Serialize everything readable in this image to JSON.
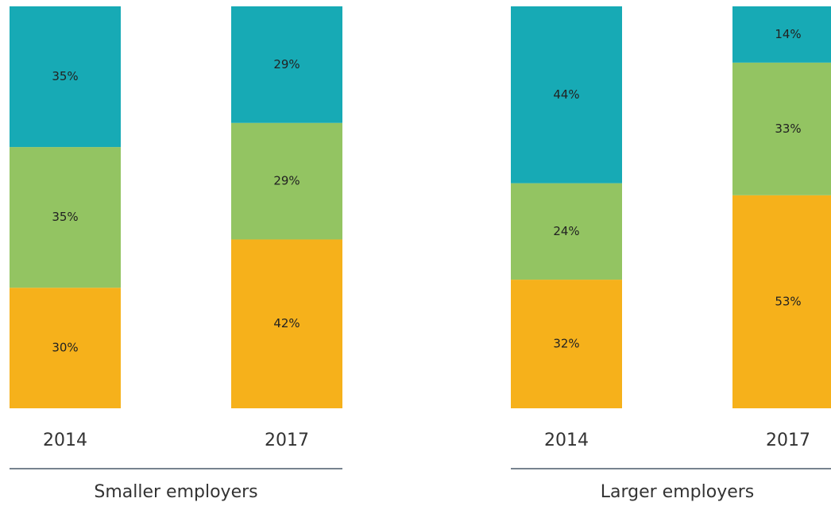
{
  "chart_data": [
    {
      "type": "bar",
      "stacked": true,
      "xlabel": "Smaller employers",
      "categories": [
        "2014",
        "2017"
      ],
      "ylim": [
        0,
        100
      ],
      "series": [
        {
          "color": "#f6b11b",
          "values": [
            30,
            42
          ],
          "value_labels": [
            "30%",
            "42%"
          ]
        },
        {
          "color": "#93c462",
          "values": [
            35,
            29
          ],
          "value_labels": [
            "35%",
            "29%"
          ]
        },
        {
          "color": "#17aab5",
          "values": [
            35,
            29
          ],
          "value_labels": [
            "35%",
            "29%"
          ]
        }
      ]
    },
    {
      "type": "bar",
      "stacked": true,
      "xlabel": "Larger employers",
      "categories": [
        "2014",
        "2017"
      ],
      "ylim": [
        0,
        100
      ],
      "series": [
        {
          "color": "#f6b11b",
          "values": [
            32,
            53
          ],
          "value_labels": [
            "32%",
            "53%"
          ]
        },
        {
          "color": "#93c462",
          "values": [
            24,
            33
          ],
          "value_labels": [
            "24%",
            "33%"
          ]
        },
        {
          "color": "#17aab5",
          "values": [
            44,
            14
          ],
          "value_labels": [
            "44%",
            "14%"
          ]
        }
      ]
    }
  ]
}
